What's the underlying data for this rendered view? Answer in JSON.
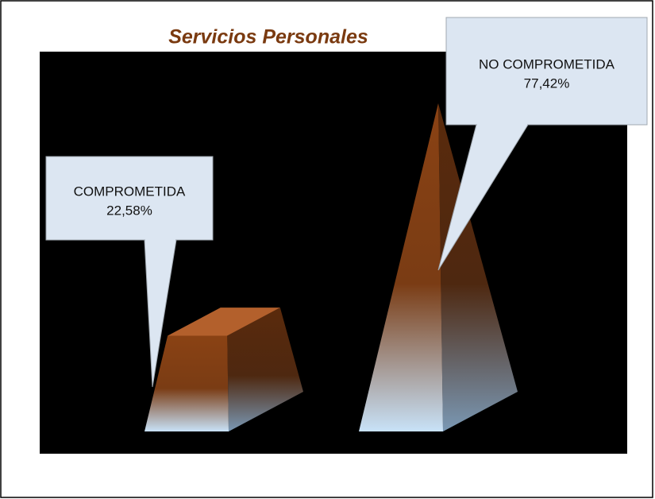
{
  "chart_data": {
    "type": "pyramid",
    "title": "Servicios Personales",
    "categories": [
      "COMPROMETIDA",
      "NO COMPROMETIDA"
    ],
    "values": [
      22.58,
      77.42
    ],
    "value_labels": [
      "22,58%",
      "77,42%"
    ],
    "color": "#8a4214"
  }
}
